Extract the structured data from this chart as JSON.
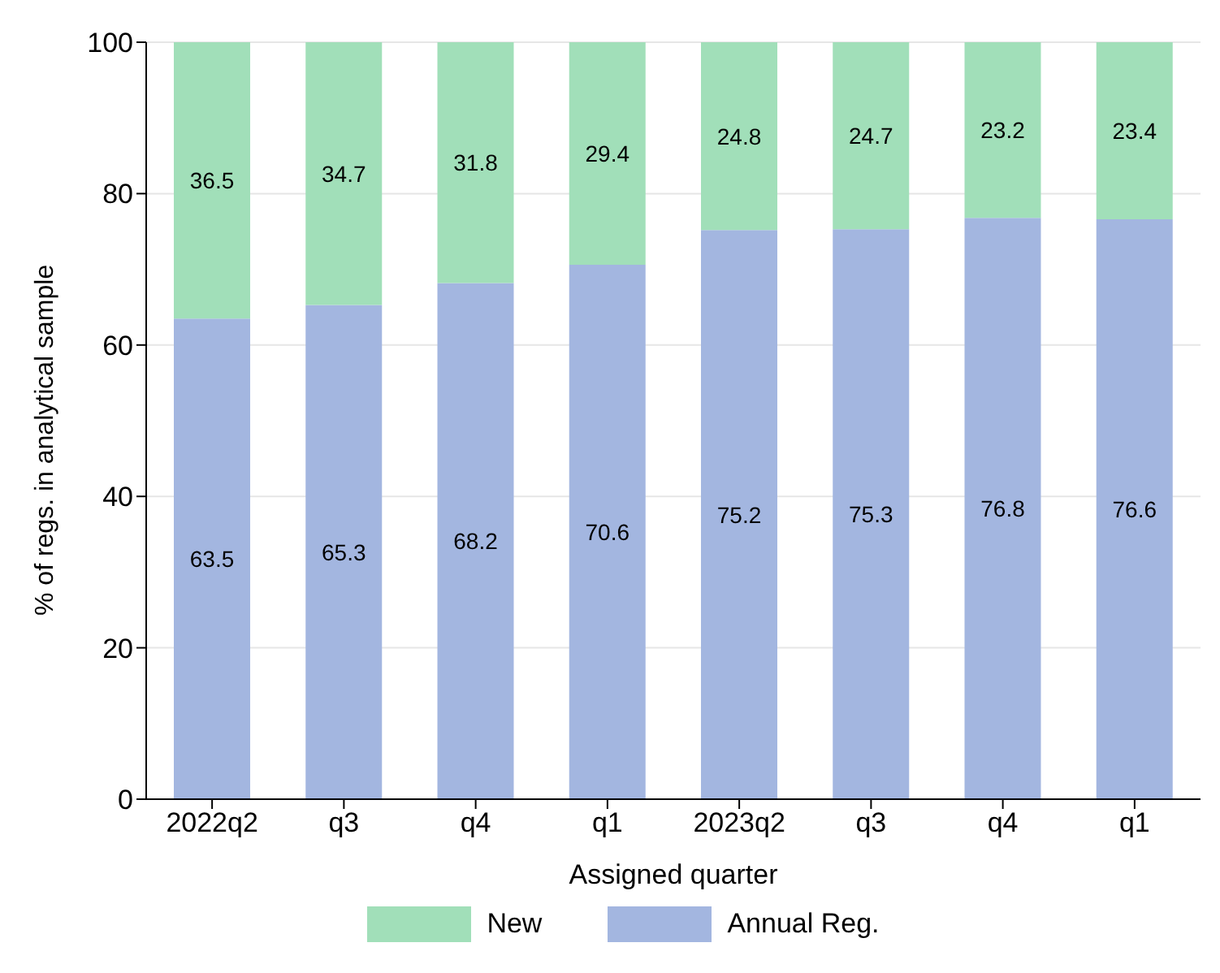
{
  "chart_data": {
    "type": "bar",
    "stacked": true,
    "xlabel": "Assigned quarter",
    "ylabel": "% of regs. in analytical sample",
    "categories": [
      "2022q2",
      "q3",
      "q4",
      "q1",
      "2023q2",
      "q3",
      "q4",
      "q1"
    ],
    "series": [
      {
        "name": "Annual Reg.",
        "color": "#a3b6e0",
        "values": [
          63.5,
          65.3,
          68.2,
          70.6,
          75.2,
          75.3,
          76.8,
          76.6
        ]
      },
      {
        "name": "New",
        "color": "#a1dfb9",
        "values": [
          36.5,
          34.7,
          31.8,
          29.4,
          24.8,
          24.7,
          23.2,
          23.4
        ]
      }
    ],
    "ylim": [
      0,
      100
    ],
    "yticks": [
      0,
      20,
      40,
      60,
      80,
      100
    ],
    "grid": "y",
    "legend": "bottom",
    "data_labels": true
  }
}
